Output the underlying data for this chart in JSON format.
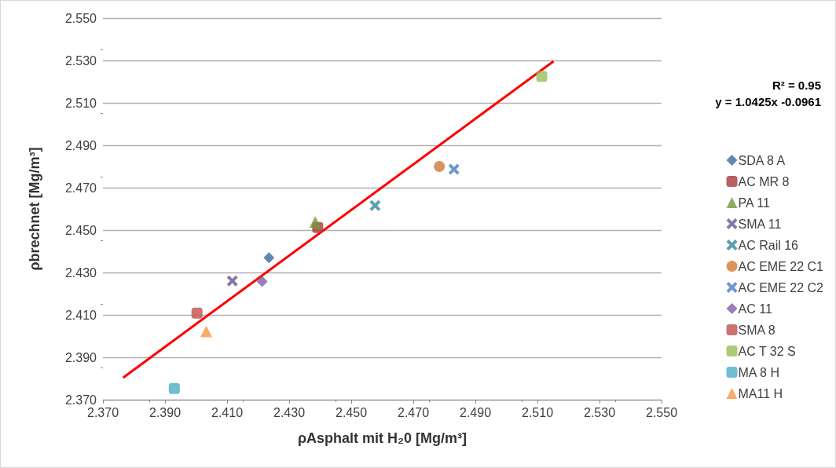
{
  "chart_data": {
    "type": "scatter",
    "xlabel": "ρAsphalt mit H₂0 [Mg/m³]",
    "ylabel": "ρbrechnet [Mg/m³]",
    "annotations": [
      "R² = 0.95",
      "y = 1.0425x -0.0961"
    ],
    "series": [
      {
        "name": "SDA 8 A",
        "color": "#3a6aa0",
        "marker": "diamond",
        "x": [
          2.4235
        ],
        "values": [
          2.4369
        ]
      },
      {
        "name": "AC MR 8",
        "color": "#a33b3a",
        "marker": "square",
        "x": [
          2.4392
        ],
        "values": [
          2.4512
        ]
      },
      {
        "name": "PA 11",
        "color": "#77963a",
        "marker": "triangle",
        "x": [
          2.4384
        ],
        "values": [
          2.4538
        ]
      },
      {
        "name": "SMA 11",
        "color": "#6a5590",
        "marker": "cross",
        "x": [
          2.4117
        ],
        "values": [
          2.426
        ]
      },
      {
        "name": "AC Rail 16",
        "color": "#31889c",
        "marker": "cross",
        "x": [
          2.4577
        ],
        "values": [
          2.4616
        ]
      },
      {
        "name": "AC EME 22 C1",
        "color": "#d07b34",
        "marker": "circle",
        "x": [
          2.4784
        ],
        "values": [
          2.48
        ]
      },
      {
        "name": "AC EME 22 C2",
        "color": "#4a7cc4",
        "marker": "cross",
        "x": [
          2.4831
        ],
        "values": [
          2.4787
        ]
      },
      {
        "name": "AC 11",
        "color": "#7d5fa8",
        "marker": "diamond",
        "x": [
          2.4213
        ],
        "values": [
          2.4257
        ]
      },
      {
        "name": "SMA 8",
        "color": "#c0504d",
        "marker": "square",
        "x": [
          2.4003
        ],
        "values": [
          2.4108
        ]
      },
      {
        "name": "AC T 32 S",
        "color": "#9bbb59",
        "marker": "square",
        "x": [
          2.5114
        ],
        "values": [
          2.5225
        ]
      },
      {
        "name": "MA 8 H",
        "color": "#4bacc6",
        "marker": "square",
        "x": [
          2.393
        ],
        "values": [
          2.3753
        ]
      },
      {
        "name": "MA11 H",
        "color": "#f79646",
        "marker": "triangle",
        "x": [
          2.4033
        ],
        "values": [
          2.4022
        ]
      },
      {
        "type": "line",
        "color": "#ff0000",
        "marker": "none",
        "line_style": "solid",
        "x": [
          2.3765,
          2.5152
        ],
        "values": [
          2.3804,
          2.5296
        ]
      }
    ],
    "xlim": [
      2.37,
      2.55
    ],
    "ylim": [
      2.37,
      2.55
    ],
    "xticks": [
      {
        "value": 2.37,
        "label": "2.370"
      },
      {
        "value": 2.39,
        "label": "2.390"
      },
      {
        "value": 2.41,
        "label": "2.410"
      },
      {
        "value": 2.43,
        "label": "2.430"
      },
      {
        "value": 2.45,
        "label": "2.450"
      },
      {
        "value": 2.47,
        "label": "2.470"
      },
      {
        "value": 2.49,
        "label": "2.490"
      },
      {
        "value": 2.51,
        "label": "2.510"
      },
      {
        "value": 2.53,
        "label": "2.530"
      },
      {
        "value": 2.55,
        "label": "2.550"
      }
    ],
    "yticks": [
      {
        "value": 2.37,
        "label": "2.370"
      },
      {
        "value": 2.39,
        "label": "2.390"
      },
      {
        "value": 2.41,
        "label": "2.410"
      },
      {
        "value": 2.43,
        "label": "2.430"
      },
      {
        "value": 2.45,
        "label": "2.450"
      },
      {
        "value": 2.47,
        "label": "2.470"
      },
      {
        "value": 2.49,
        "label": "2.490"
      },
      {
        "value": 2.51,
        "label": "2.510"
      },
      {
        "value": 2.53,
        "label": "2.530"
      },
      {
        "value": 2.55,
        "label": "2.550"
      }
    ],
    "grid": "y",
    "legend": "right"
  }
}
